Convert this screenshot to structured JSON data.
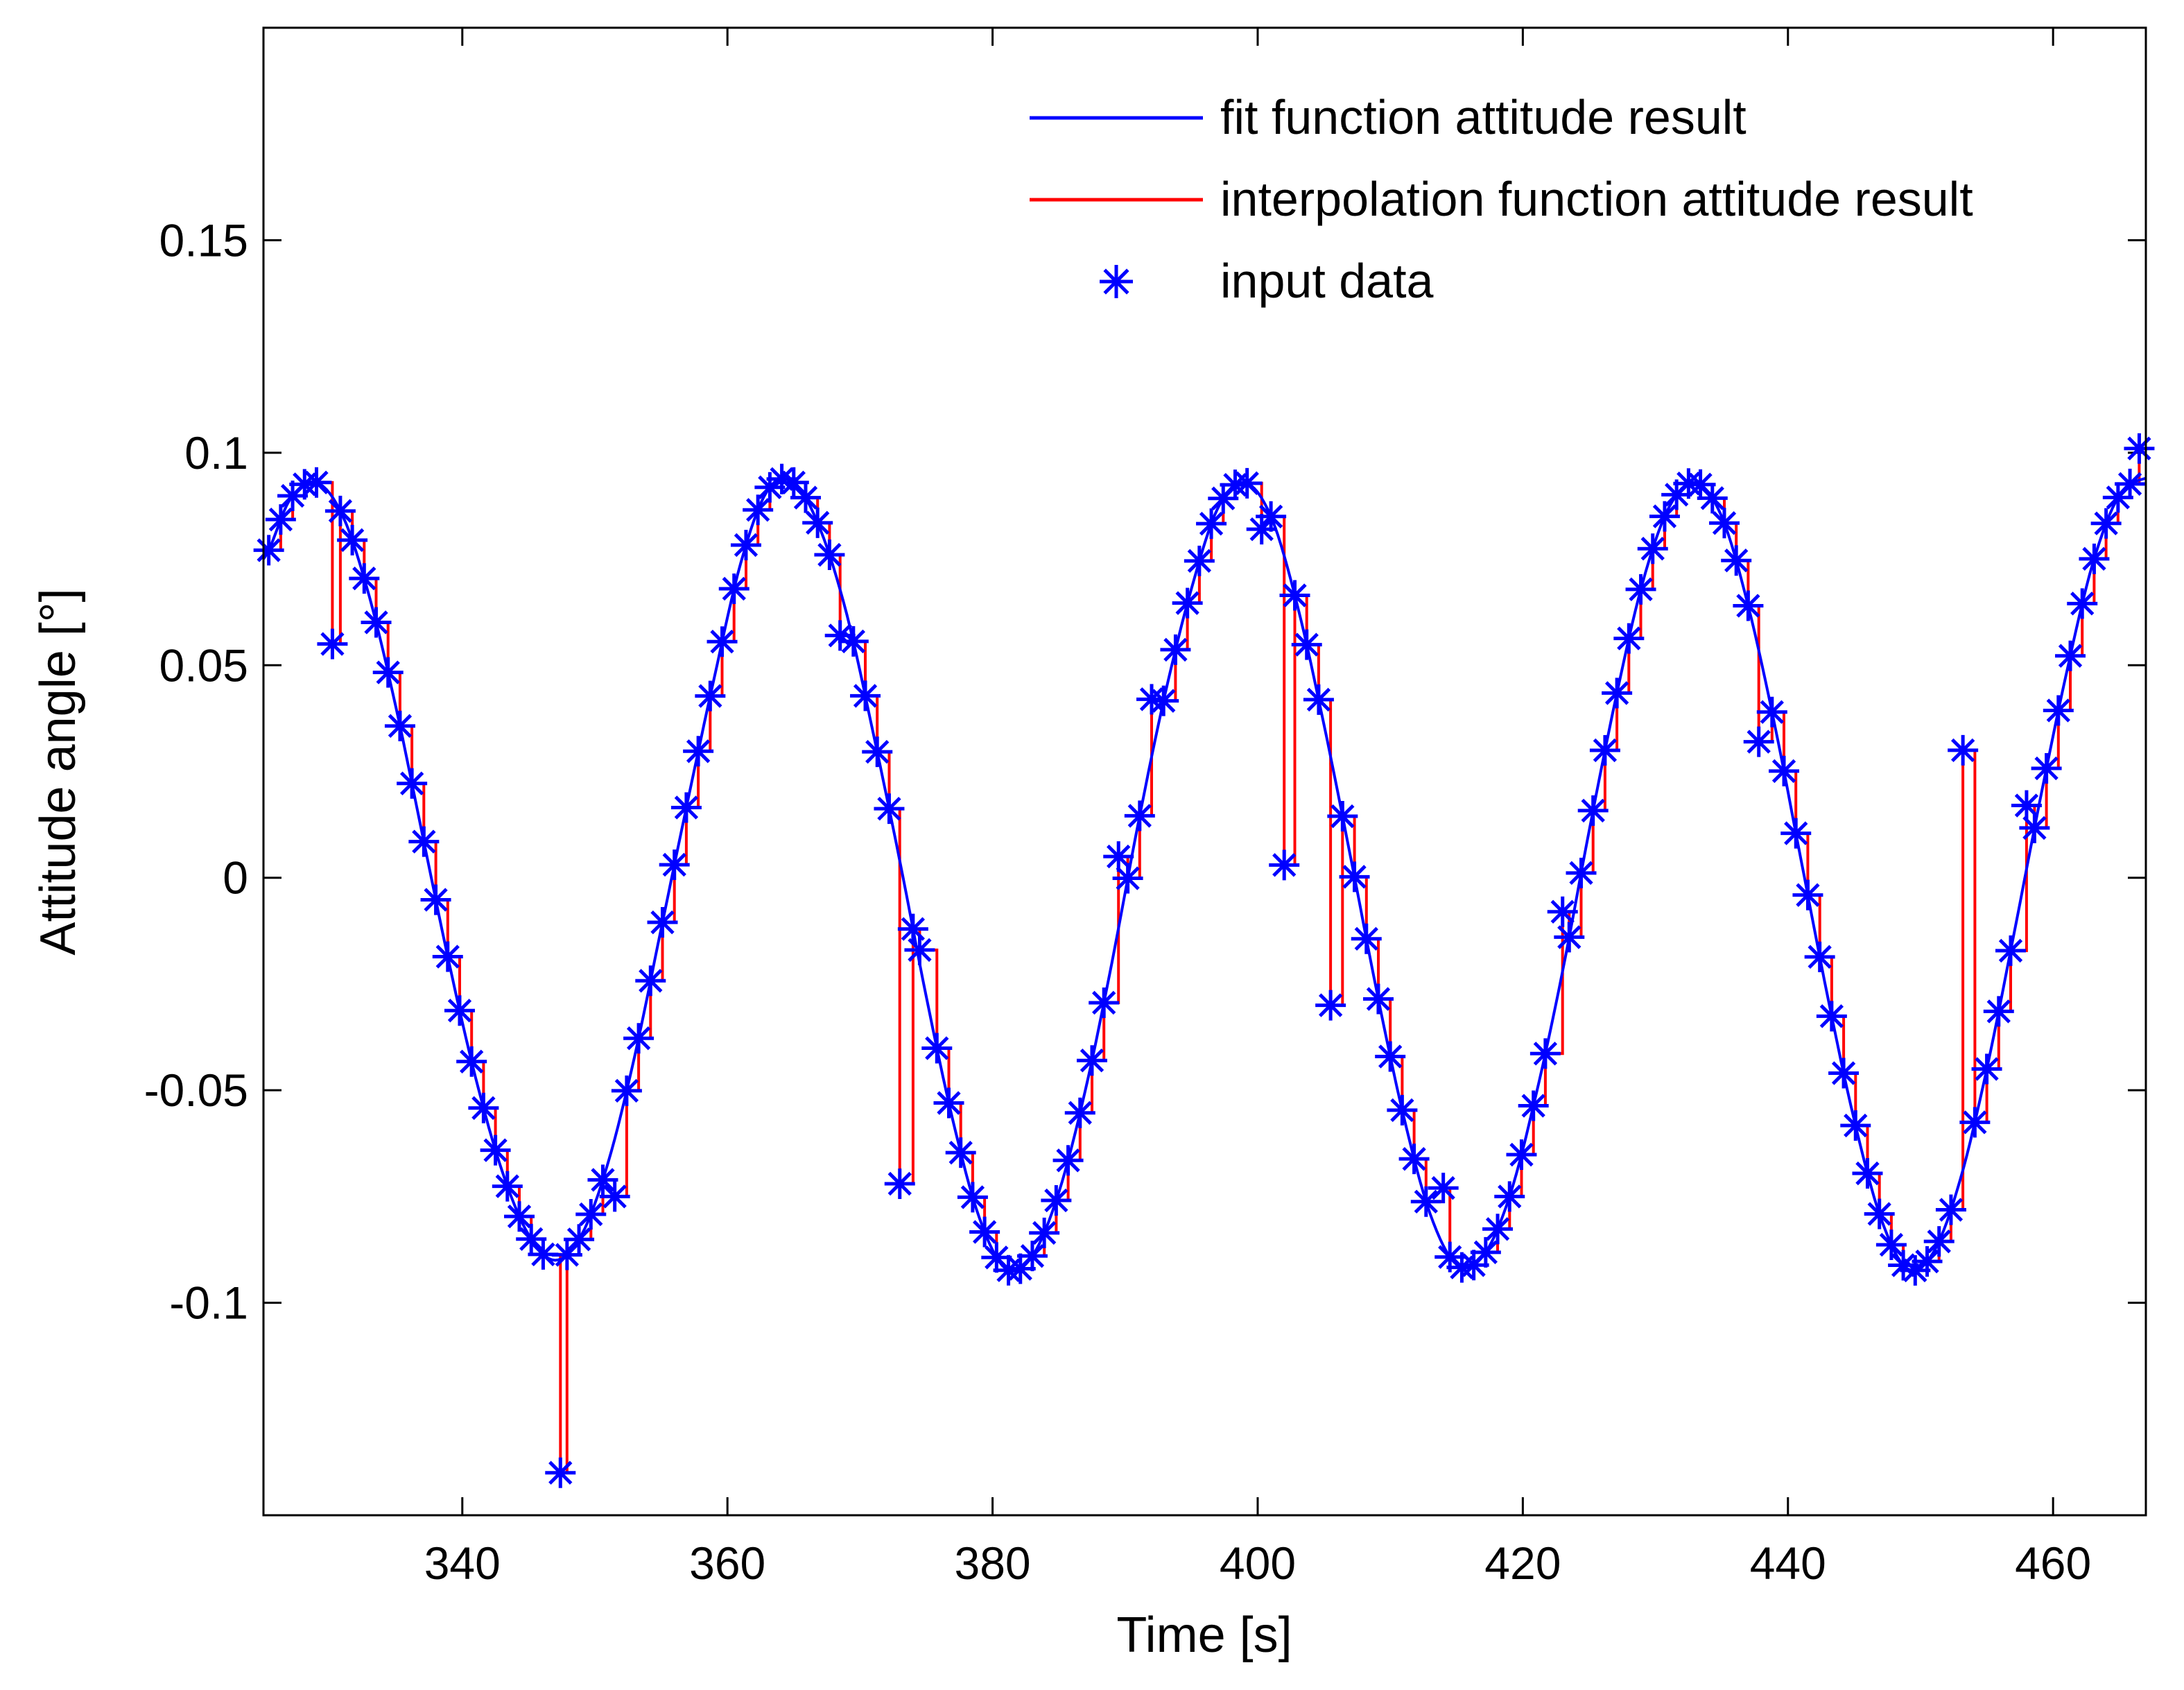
{
  "chart_data": {
    "type": "line",
    "xlabel": "Time [s]",
    "ylabel": "Attitude angle [°]",
    "xlim": [
      325,
      467
    ],
    "ylim": [
      -0.15,
      0.2
    ],
    "xticks": [
      340,
      360,
      380,
      400,
      420,
      440,
      460
    ],
    "xtick_labels": [
      "340",
      "360",
      "380",
      "400",
      "420",
      "440",
      "460"
    ],
    "yticks": [
      -0.1,
      -0.05,
      0,
      0.05,
      0.1,
      0.15
    ],
    "ytick_labels": [
      "-0.1",
      "-0.05",
      "0",
      "0.05",
      "0.1",
      "0.15"
    ],
    "legend_position": "top-right",
    "grid": false,
    "colors": {
      "fit": "#0000ff",
      "interp": "#ff0000",
      "input": "#0000ff"
    },
    "series": [
      {
        "name": "fit function attitude result",
        "style": "line",
        "color": "#0000ff",
        "curve": {
          "t": [
            325,
            327,
            329,
            331,
            333,
            335,
            337,
            339,
            341,
            343,
            345,
            347,
            349,
            351,
            353,
            355,
            357,
            359,
            361,
            363,
            365,
            367,
            369,
            371,
            373,
            375,
            377,
            379,
            381,
            383,
            385,
            387,
            389,
            391,
            393,
            395,
            397,
            399,
            401,
            403,
            405,
            407,
            409,
            411,
            413,
            415,
            417,
            419,
            421,
            423,
            425,
            427,
            429,
            431,
            433,
            435,
            437,
            439,
            441,
            443,
            445,
            447,
            449,
            451,
            453,
            455,
            457,
            459,
            461,
            463,
            465,
            467
          ],
          "y": [
            0.075,
            0.089,
            0.093,
            0.085,
            0.066,
            0.04,
            0.01,
            -0.02,
            -0.047,
            -0.069,
            -0.084,
            -0.09,
            -0.084,
            -0.067,
            -0.042,
            -0.012,
            0.018,
            0.047,
            0.074,
            0.091,
            0.093,
            0.082,
            0.062,
            0.034,
            0.004,
            -0.028,
            -0.057,
            -0.08,
            -0.092,
            -0.089,
            -0.074,
            -0.05,
            -0.02,
            0.013,
            0.043,
            0.068,
            0.087,
            0.093,
            0.085,
            0.064,
            0.036,
            0.005,
            -0.027,
            -0.056,
            -0.079,
            -0.091,
            -0.089,
            -0.075,
            -0.051,
            -0.022,
            0.011,
            0.042,
            0.069,
            0.087,
            0.093,
            0.085,
            0.064,
            0.036,
            0.004,
            -0.028,
            -0.057,
            -0.08,
            -0.092,
            -0.088,
            -0.071,
            -0.045,
            -0.014,
            0.018,
            0.048,
            0.074,
            0.09,
            0.094
          ]
        }
      },
      {
        "name": "interpolation function attitude result",
        "style": "line",
        "color": "#ff0000",
        "perturbations": [
          {
            "x": 330.2,
            "y": 0.055
          },
          {
            "x": 347.4,
            "y": -0.14
          },
          {
            "x": 351.5,
            "y": -0.075
          },
          {
            "x": 368.5,
            "y": 0.057
          },
          {
            "x": 373.0,
            "y": -0.072
          },
          {
            "x": 374.5,
            "y": -0.017
          },
          {
            "x": 389.5,
            "y": 0.005
          },
          {
            "x": 392.0,
            "y": 0.042
          },
          {
            "x": 400.3,
            "y": 0.082
          },
          {
            "x": 402.0,
            "y": 0.003
          },
          {
            "x": 405.5,
            "y": -0.03
          },
          {
            "x": 414.0,
            "y": -0.073
          },
          {
            "x": 423.0,
            "y": -0.008
          },
          {
            "x": 437.8,
            "y": 0.032
          },
          {
            "x": 453.2,
            "y": 0.03
          },
          {
            "x": 458.0,
            "y": 0.017
          },
          {
            "x": 466.5,
            "y": 0.101
          }
        ]
      },
      {
        "name": "input data",
        "style": "marker",
        "marker": "*",
        "color": "#0000ff",
        "sample_step": 0.9
      }
    ],
    "legend": [
      {
        "label": "fit function attitude result",
        "style": "line",
        "color": "#0000ff"
      },
      {
        "label": "interpolation function attitude result",
        "style": "line",
        "color": "#ff0000"
      },
      {
        "label": "input data",
        "style": "marker",
        "color": "#0000ff"
      }
    ]
  }
}
